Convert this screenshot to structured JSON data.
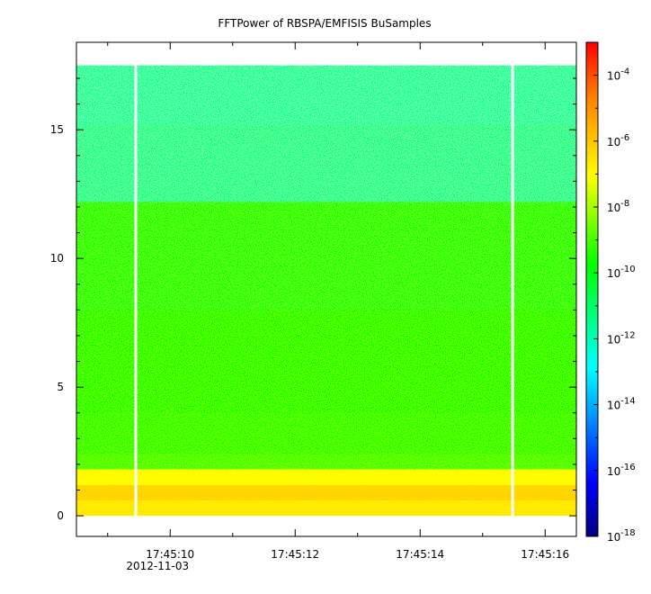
{
  "chart_data": {
    "type": "heatmap",
    "title": "FFTPower of RBSPA/EMFISIS  BuSamples",
    "xlabel": "",
    "ylabel": "",
    "x_ticks": [
      {
        "label": "17:45:10",
        "sublabel": "2012-11-03",
        "t": 10
      },
      {
        "label": "17:45:12",
        "sublabel": "",
        "t": 12
      },
      {
        "label": "17:45:14",
        "sublabel": "",
        "t": 14
      },
      {
        "label": "17:45:16",
        "sublabel": "",
        "t": 16
      }
    ],
    "x_minor_ticks": [
      9,
      11,
      13,
      15
    ],
    "xlim": [
      8.5,
      16.5
    ],
    "y_ticks": [
      0,
      5,
      10,
      15
    ],
    "ylim": [
      -0.8,
      18.4
    ],
    "data_extent": {
      "t_start": 8.5,
      "t_end": 16.5,
      "y_min": 0,
      "y_max": 17.5
    },
    "data_gaps_t": [
      9.45,
      15.48
    ],
    "colorbar": {
      "scale": "log",
      "range": [
        1e-18,
        0.001
      ],
      "ticks": [
        {
          "base": "10",
          "exp": "-4",
          "value": -4
        },
        {
          "base": "10",
          "exp": "-6",
          "value": -6
        },
        {
          "base": "10",
          "exp": "-8",
          "value": -8
        },
        {
          "base": "10",
          "exp": "-10",
          "value": -10
        },
        {
          "base": "10",
          "exp": "-12",
          "value": -12
        },
        {
          "base": "10",
          "exp": "-14",
          "value": -14
        },
        {
          "base": "10",
          "exp": "-16",
          "value": -16
        },
        {
          "base": "10",
          "exp": "-18",
          "value": -18
        }
      ]
    },
    "bands": [
      {
        "y_from": 0,
        "y_to": 0.6,
        "log_power": -6.6
      },
      {
        "y_from": 0.6,
        "y_to": 1.2,
        "log_power": -6.2
      },
      {
        "y_from": 1.2,
        "y_to": 1.8,
        "log_power": -7.0
      },
      {
        "y_from": 1.8,
        "y_to": 2.4,
        "log_power": -9.2
      },
      {
        "y_from": 2.4,
        "y_to": 4.0,
        "log_power": -9.5
      },
      {
        "y_from": 4.0,
        "y_to": 8.0,
        "log_power": -9.8
      },
      {
        "y_from": 8.0,
        "y_to": 12.2,
        "log_power": -10.0
      },
      {
        "y_from": 12.2,
        "y_to": 15.2,
        "log_power": -11.6
      },
      {
        "y_from": 15.2,
        "y_to": 17.5,
        "log_power": -11.8
      }
    ]
  }
}
